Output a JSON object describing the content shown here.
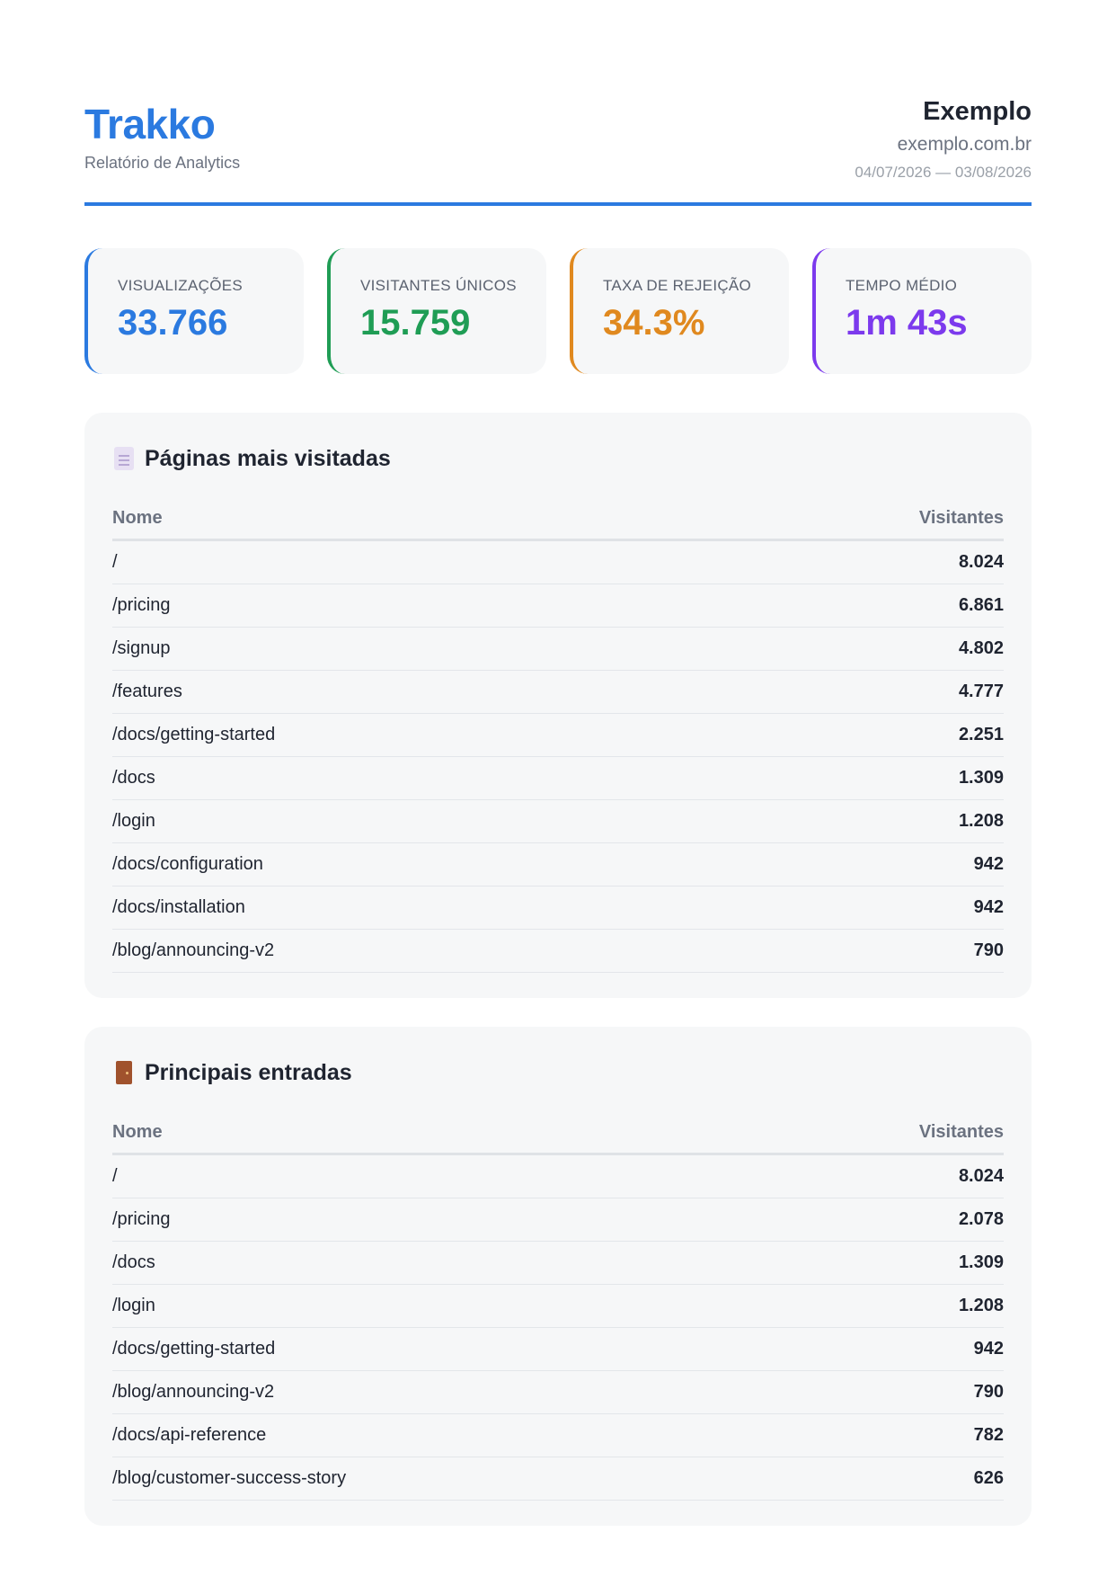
{
  "header": {
    "brand": "Trakko",
    "subtitle": "Relatório de Analytics",
    "site_name": "Exemplo",
    "site_domain": "exemplo.com.br",
    "date_range": "04/07/2026 — 03/08/2026",
    "accent": "#2b7ae0"
  },
  "kpis": [
    {
      "label": "VISUALIZAÇÕES",
      "value": "33.766",
      "color": "#2b7ae0"
    },
    {
      "label": "VISITANTES ÚNICOS",
      "value": "15.759",
      "color": "#1f9d55"
    },
    {
      "label": "TAXA DE REJEIÇÃO",
      "value": "34.3%",
      "color": "#e0891f"
    },
    {
      "label": "TEMPO MÉDIO",
      "value": "1m 43s",
      "color": "#7c3aed"
    }
  ],
  "top_pages": {
    "title": "Páginas mais visitadas",
    "icon": "page-icon",
    "columns": [
      "Nome",
      "Visitantes"
    ],
    "rows": [
      {
        "name": "/",
        "visitors": "8.024"
      },
      {
        "name": "/pricing",
        "visitors": "6.861"
      },
      {
        "name": "/signup",
        "visitors": "4.802"
      },
      {
        "name": "/features",
        "visitors": "4.777"
      },
      {
        "name": "/docs/getting-started",
        "visitors": "2.251"
      },
      {
        "name": "/docs",
        "visitors": "1.309"
      },
      {
        "name": "/login",
        "visitors": "1.208"
      },
      {
        "name": "/docs/configuration",
        "visitors": "942"
      },
      {
        "name": "/docs/installation",
        "visitors": "942"
      },
      {
        "name": "/blog/announcing-v2",
        "visitors": "790"
      }
    ]
  },
  "top_entries": {
    "title": "Principais entradas",
    "icon": "door-icon",
    "columns": [
      "Nome",
      "Visitantes"
    ],
    "rows": [
      {
        "name": "/",
        "visitors": "8.024"
      },
      {
        "name": "/pricing",
        "visitors": "2.078"
      },
      {
        "name": "/docs",
        "visitors": "1.309"
      },
      {
        "name": "/login",
        "visitors": "1.208"
      },
      {
        "name": "/docs/getting-started",
        "visitors": "942"
      },
      {
        "name": "/blog/announcing-v2",
        "visitors": "790"
      },
      {
        "name": "/docs/api-reference",
        "visitors": "782"
      },
      {
        "name": "/blog/customer-success-story",
        "visitors": "626"
      }
    ]
  }
}
